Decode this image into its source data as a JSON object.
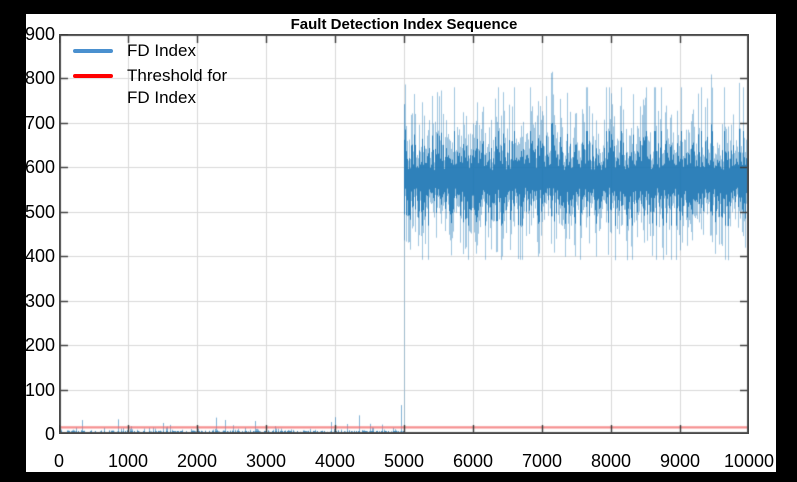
{
  "window": {
    "background_color": "#000000",
    "figure_background": "#ffffff"
  },
  "chart_data": {
    "type": "line",
    "title": "Fault Detection Index Sequence",
    "xlabel": "",
    "ylabel": "",
    "xlim": [
      0,
      10000
    ],
    "ylim": [
      0,
      900
    ],
    "x_ticks": [
      0,
      1000,
      2000,
      3000,
      4000,
      5000,
      6000,
      7000,
      8000,
      9000,
      10000
    ],
    "y_ticks": [
      0,
      100,
      200,
      300,
      400,
      500,
      600,
      700,
      800,
      900
    ],
    "grid": true,
    "grid_color": "#d9d9d9",
    "axis_color": "#4a4a4a",
    "tick_color": "#3a3a3a",
    "tick_label_color": "#000000",
    "legend": {
      "position": "top-left",
      "entries": [
        {
          "label_lines": [
            "FD Index"
          ],
          "swatch_color": "#4a90cf"
        },
        {
          "label_lines": [
            "Threshold for",
            "FD Index"
          ],
          "swatch_color": "#ff0000"
        }
      ]
    },
    "series": [
      {
        "name": "FD Index",
        "style": "noisy-line",
        "color": "#1f77b4",
        "fault_transition_x": 5000,
        "segments": [
          {
            "x_start": 0,
            "x_end": 5000,
            "description": "pre-fault low noise",
            "mean": 5,
            "sigma": 4.5,
            "typical_range": [
              0,
              20
            ],
            "spike_probability": 0.03,
            "spike_extra_max": 25
          },
          {
            "x_start": 5000,
            "x_end": 10000,
            "description": "post-fault elevated noise",
            "mean": 575,
            "sigma_up": 82,
            "sigma_down": 78,
            "typical_range": [
              430,
              700
            ],
            "min": 392,
            "max": 812
          }
        ],
        "notable_points": [
          {
            "x": 4350,
            "y": 42
          },
          {
            "x": 4950,
            "y": 65
          },
          {
            "x": 5000,
            "y": 690
          },
          {
            "x": 5150,
            "y": 755
          },
          {
            "x": 7150,
            "y": 815
          },
          {
            "x": 9860,
            "y": 790
          }
        ]
      },
      {
        "name": "Threshold for FD Index",
        "style": "horizontal-line",
        "color": "#f26a6a",
        "value": 15
      }
    ]
  }
}
